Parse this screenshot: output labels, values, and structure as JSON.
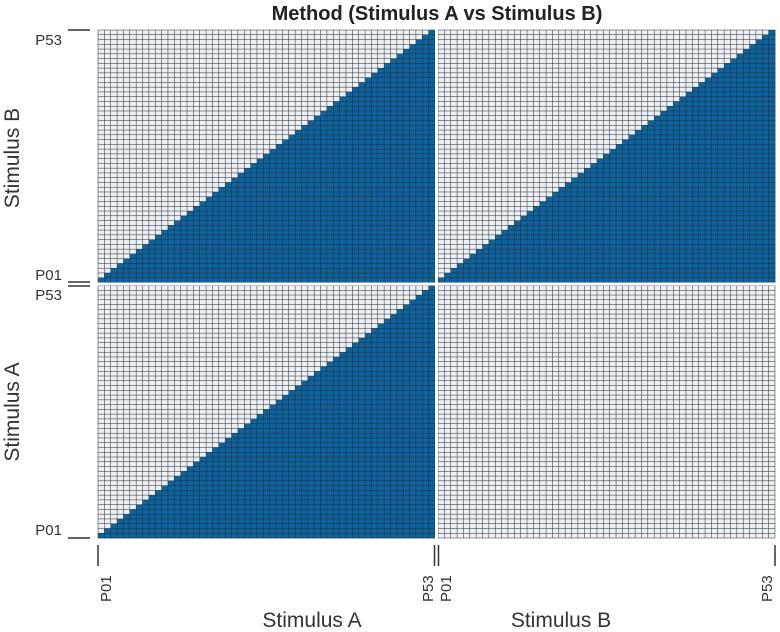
{
  "chart_data": {
    "type": "heatmap",
    "title": "Method (Stimulus A vs Stimulus B)",
    "grid_size_per_block": 53,
    "x_groups": [
      {
        "label": "Stimulus A",
        "tick_start": "P01",
        "tick_end": "P53"
      },
      {
        "label": "Stimulus B",
        "tick_start": "P01",
        "tick_end": "P53"
      }
    ],
    "y_groups": [
      {
        "label": "Stimulus A",
        "tick_start": "P01",
        "tick_end": "P53"
      },
      {
        "label": "Stimulus B",
        "tick_start": "P01",
        "tick_end": "P53"
      }
    ],
    "blocks": [
      {
        "row": "Stimulus B",
        "col": "Stimulus A",
        "pattern": "lower-right-triangle"
      },
      {
        "row": "Stimulus B",
        "col": "Stimulus B",
        "pattern": "lower-right-triangle"
      },
      {
        "row": "Stimulus A",
        "col": "Stimulus A",
        "pattern": "lower-right-triangle"
      },
      {
        "row": "Stimulus A",
        "col": "Stimulus B",
        "pattern": "empty"
      }
    ],
    "colors": {
      "filled": "#0b64a0",
      "empty": "#ebf0f6",
      "gridline": "#2a2a2a",
      "separator": "#ffffff"
    }
  }
}
